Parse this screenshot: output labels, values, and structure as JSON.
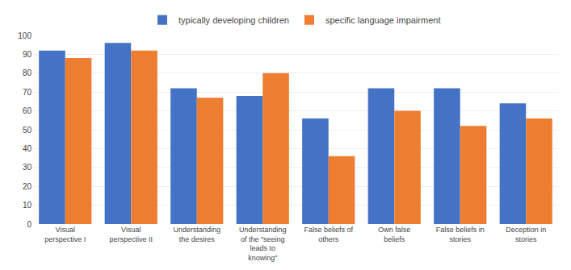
{
  "chart_data": {
    "type": "bar",
    "categories": [
      "Visual\nperspective I",
      "Visual\nperspective II",
      "Understanding\nthe desires",
      "Understanding\nof the \"seeing\nleads to\nknowing\"",
      "False beliefs of\nothers",
      "Own false\nbeliefs",
      "False beliefs in\nstories",
      "Deception in\nstories"
    ],
    "series": [
      {
        "name": "typically developing children",
        "color": "#4472C4",
        "values": [
          92,
          96,
          72,
          68,
          56,
          72,
          72,
          64
        ]
      },
      {
        "name": "specific language impairment",
        "color": "#ED7D31",
        "values": [
          88,
          92,
          67,
          80,
          36,
          60,
          52,
          56
        ]
      }
    ],
    "ylim": [
      0,
      100
    ],
    "yticks": [
      0,
      10,
      20,
      30,
      40,
      50,
      60,
      70,
      80,
      90,
      100
    ],
    "grid": true,
    "legend": "top"
  }
}
